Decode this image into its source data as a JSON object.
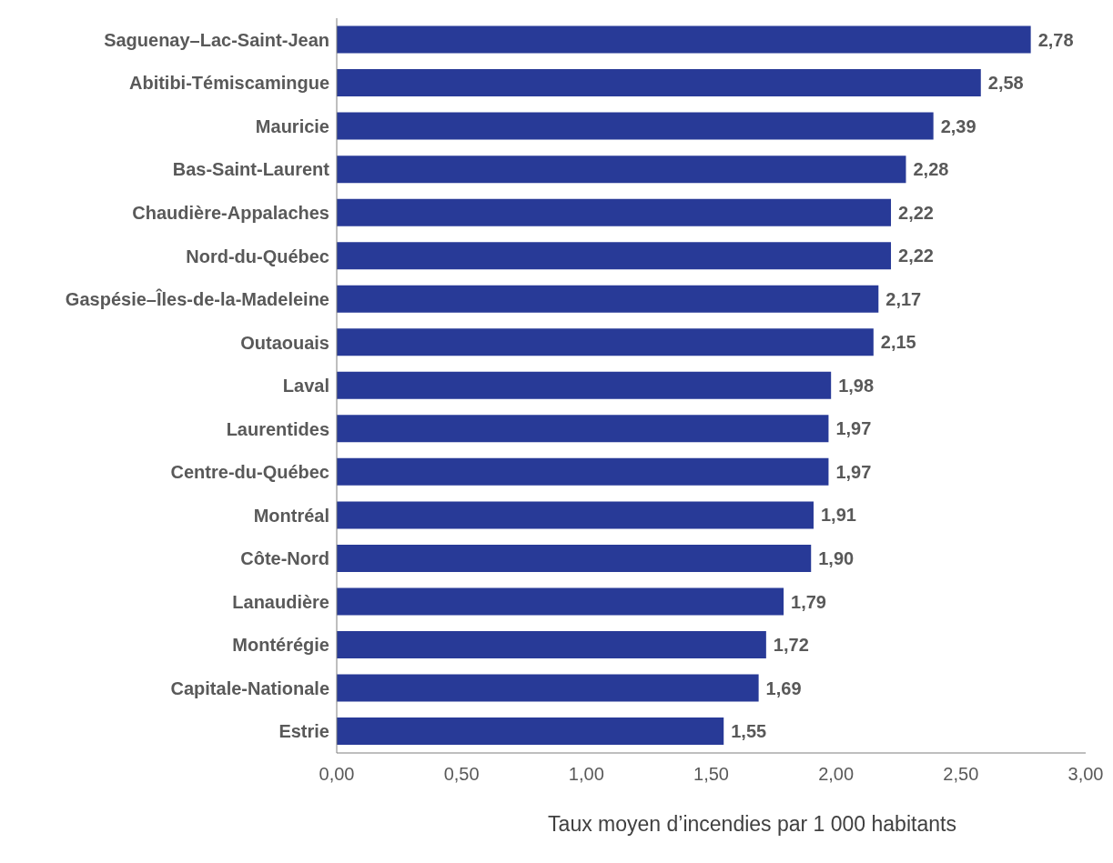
{
  "chart_data": {
    "type": "bar",
    "orientation": "horizontal",
    "xlabel": "Taux moyen d’incendies par 1 000 habitants",
    "categories": [
      "Saguenay–Lac-Saint-Jean",
      "Abitibi-Témiscamingue",
      "Mauricie",
      "Bas-Saint-Laurent",
      "Chaudière-Appalaches",
      "Nord-du-Québec",
      "Gaspésie–Îles-de-la-Madeleine",
      "Outaouais",
      "Laval",
      "Laurentides",
      "Centre-du-Québec",
      "Montréal",
      "Côte-Nord",
      "Lanaudière",
      "Montérégie",
      "Capitale-Nationale",
      "Estrie"
    ],
    "values": [
      2.78,
      2.58,
      2.39,
      2.28,
      2.22,
      2.22,
      2.17,
      2.15,
      1.98,
      1.97,
      1.97,
      1.91,
      1.9,
      1.79,
      1.72,
      1.69,
      1.55
    ],
    "value_labels": [
      "2,78",
      "2,58",
      "2,39",
      "2,28",
      "2,22",
      "2,22",
      "2,17",
      "2,15",
      "1,98",
      "1,97",
      "1,97",
      "1,91",
      "1,90",
      "1,79",
      "1,72",
      "1,69",
      "1,55"
    ],
    "color": "#283a97",
    "xlim": [
      0,
      3
    ],
    "xticks": [
      {
        "value": 0,
        "label": "0,00"
      },
      {
        "value": 0.5,
        "label": "0,50"
      },
      {
        "value": 1,
        "label": "1,00"
      },
      {
        "value": 1.5,
        "label": "1,50"
      },
      {
        "value": 2,
        "label": "2,00"
      },
      {
        "value": 2.5,
        "label": "2,50"
      },
      {
        "value": 3,
        "label": "3,00"
      }
    ],
    "grid": false,
    "legend": false
  }
}
